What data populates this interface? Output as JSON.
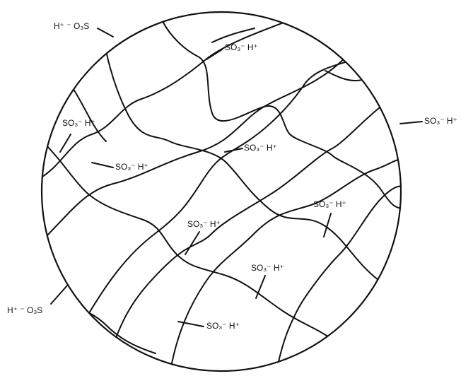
{
  "labels": [
    "H⁺ ⁻ O₃S",
    "SO₃⁻ H⁺",
    "SO₃⁻ H⁺",
    "SO₃⁻ H⁺",
    "SO₃⁻ H⁺",
    "SO₃⁻ H⁺",
    "SO₃⁻ H⁺",
    "SO₃⁻ H⁺",
    "SO₃⁻ H⁺",
    "H⁺ ⁻ O₃S",
    "SO₃⁻ H⁺"
  ]
}
